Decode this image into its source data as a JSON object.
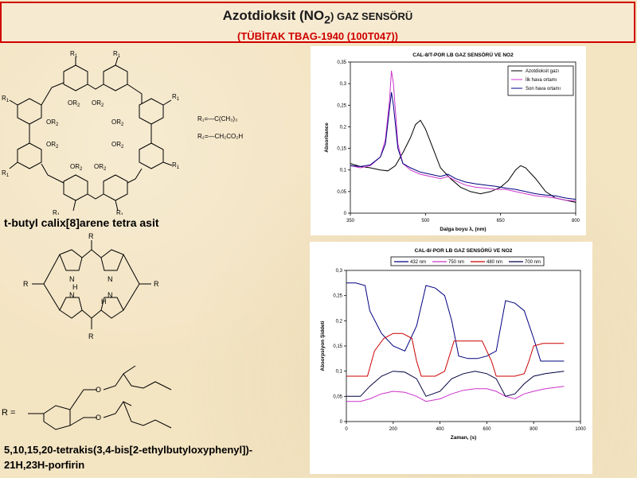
{
  "header": {
    "title_prefix": "Azotdioksit (NO",
    "title_sub": "2",
    "title_suffix": ") GAZ SENSÖRÜ",
    "subtitle": "(TÜBİTAK TBAG-1940 (100T047))"
  },
  "left": {
    "calix_label": "t-butyl calix[8]arene tetra asit",
    "r1_def": "R₁=—C(CH₃)₃",
    "r2_def": "R₂=—CH₂CO₂H",
    "porphyrin_label_1": "5,10,15,20-tetrakis(3,4-bis[2-ethylbutyloxyphenyl])-",
    "porphyrin_label_2": "21H,23H-porfirin",
    "r_eq": "R ="
  },
  "chart_data": [
    {
      "type": "line",
      "title": "CAL-8/T-POR LB GAZ SENSÖRÜ VE NO2",
      "xlabel": "Dalga boyu λ, (nm)",
      "ylabel": "Absorbance",
      "xlim": [
        350,
        800
      ],
      "ylim": [
        0,
        0.35
      ],
      "xticks": [
        350,
        500,
        650,
        800
      ],
      "yticks": [
        "0",
        "0,05",
        "0,1",
        "0,15",
        "0,2",
        "0,25",
        "0,3",
        "0,35"
      ],
      "legend_position": "top-right",
      "series": [
        {
          "name": "Azotdioksit gazı",
          "color": "#000000",
          "x": [
            350,
            370,
            390,
            410,
            425,
            440,
            455,
            470,
            480,
            490,
            500,
            515,
            530,
            550,
            570,
            590,
            610,
            630,
            650,
            665,
            680,
            690,
            700,
            720,
            740,
            760,
            780,
            800
          ],
          "y": [
            0.115,
            0.108,
            0.105,
            0.1,
            0.098,
            0.11,
            0.14,
            0.175,
            0.205,
            0.215,
            0.195,
            0.15,
            0.105,
            0.08,
            0.06,
            0.05,
            0.045,
            0.05,
            0.06,
            0.075,
            0.1,
            0.11,
            0.105,
            0.08,
            0.05,
            0.035,
            0.03,
            0.025
          ]
        },
        {
          "name": "İlk hava ortamı",
          "color": "#cc33cc",
          "x": [
            350,
            370,
            390,
            410,
            420,
            428,
            432,
            436,
            445,
            455,
            470,
            490,
            510,
            530,
            545,
            560,
            580,
            600,
            620,
            640,
            660,
            680,
            700,
            720,
            740,
            760,
            780,
            800
          ],
          "y": [
            0.11,
            0.105,
            0.11,
            0.13,
            0.17,
            0.26,
            0.33,
            0.3,
            0.16,
            0.115,
            0.1,
            0.09,
            0.085,
            0.08,
            0.085,
            0.075,
            0.065,
            0.06,
            0.058,
            0.055,
            0.055,
            0.05,
            0.045,
            0.04,
            0.038,
            0.035,
            0.03,
            0.028
          ]
        },
        {
          "name": "Son hava ortamı",
          "color": "#000080",
          "x": [
            350,
            370,
            390,
            410,
            420,
            428,
            432,
            436,
            445,
            455,
            470,
            490,
            510,
            530,
            545,
            560,
            580,
            600,
            620,
            640,
            660,
            680,
            700,
            720,
            740,
            760,
            780,
            800
          ],
          "y": [
            0.11,
            0.108,
            0.112,
            0.13,
            0.16,
            0.24,
            0.28,
            0.25,
            0.15,
            0.115,
            0.105,
            0.095,
            0.09,
            0.085,
            0.09,
            0.08,
            0.072,
            0.068,
            0.065,
            0.062,
            0.058,
            0.055,
            0.05,
            0.045,
            0.042,
            0.04,
            0.035,
            0.032
          ]
        }
      ]
    },
    {
      "type": "line",
      "title": "CAL-8/-POR LB GAZ SENSÖRÜ VE NO2",
      "xlabel": "Zaman, (s)",
      "ylabel": "Absorpsiyon Şiddeti",
      "xlim": [
        0,
        1000
      ],
      "ylim": [
        0,
        0.3
      ],
      "xticks": [
        0,
        200,
        400,
        600,
        800,
        1000
      ],
      "yticks": [
        "0",
        "0,05",
        "0,1",
        "0,15",
        "0,2",
        "0,25",
        "0,3"
      ],
      "legend_position": "top",
      "series": [
        {
          "name": "432 nm",
          "color": "#000080",
          "x": [
            0,
            40,
            80,
            100,
            150,
            200,
            250,
            300,
            340,
            380,
            420,
            450,
            480,
            520,
            560,
            600,
            640,
            680,
            720,
            760,
            800,
            830,
            860,
            900,
            930
          ],
          "y": [
            0.275,
            0.275,
            0.27,
            0.22,
            0.175,
            0.15,
            0.14,
            0.19,
            0.27,
            0.265,
            0.25,
            0.2,
            0.13,
            0.125,
            0.125,
            0.13,
            0.14,
            0.24,
            0.235,
            0.22,
            0.165,
            0.12,
            0.12,
            0.12,
            0.12
          ]
        },
        {
          "name": "750 nm",
          "color": "#cc33cc",
          "x": [
            0,
            60,
            100,
            150,
            200,
            250,
            300,
            340,
            400,
            450,
            500,
            550,
            600,
            640,
            680,
            720,
            760,
            800,
            850,
            930
          ],
          "y": [
            0.04,
            0.04,
            0.045,
            0.055,
            0.06,
            0.058,
            0.05,
            0.04,
            0.045,
            0.055,
            0.062,
            0.065,
            0.065,
            0.06,
            0.05,
            0.045,
            0.055,
            0.06,
            0.065,
            0.07
          ]
        },
        {
          "name": "480 nm",
          "color": "#cc0000",
          "x": [
            0,
            60,
            90,
            120,
            160,
            200,
            240,
            280,
            300,
            320,
            340,
            380,
            420,
            460,
            500,
            540,
            580,
            620,
            640,
            680,
            720,
            760,
            780,
            800,
            840,
            930
          ],
          "y": [
            0.09,
            0.09,
            0.09,
            0.14,
            0.165,
            0.175,
            0.175,
            0.165,
            0.12,
            0.09,
            0.09,
            0.09,
            0.1,
            0.16,
            0.16,
            0.16,
            0.16,
            0.12,
            0.09,
            0.09,
            0.09,
            0.095,
            0.12,
            0.15,
            0.155,
            0.155
          ]
        },
        {
          "name": "700 nm",
          "color": "#000040",
          "x": [
            0,
            60,
            100,
            150,
            200,
            250,
            300,
            340,
            400,
            450,
            500,
            550,
            600,
            640,
            680,
            720,
            760,
            800,
            850,
            930
          ],
          "y": [
            0.05,
            0.05,
            0.07,
            0.09,
            0.1,
            0.098,
            0.085,
            0.05,
            0.06,
            0.085,
            0.095,
            0.1,
            0.095,
            0.085,
            0.05,
            0.055,
            0.075,
            0.09,
            0.095,
            0.1
          ]
        }
      ]
    }
  ]
}
